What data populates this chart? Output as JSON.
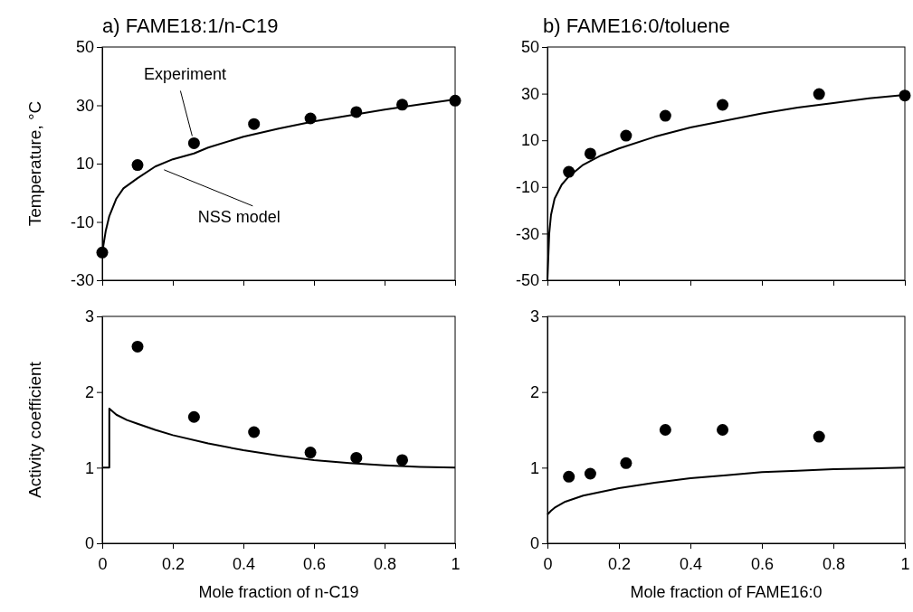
{
  "chart_data": [
    {
      "type": "scatter",
      "title": "a) FAME18:1/n-C19",
      "ylabel": "Temperature, °C",
      "xlim": [
        0,
        1
      ],
      "xticks": [
        0,
        0.2,
        0.4,
        0.6,
        0.8,
        1
      ],
      "ylim": [
        -30,
        50
      ],
      "yticks": [
        -30,
        -10,
        10,
        30,
        50
      ],
      "tick_labels": "y",
      "grid": false,
      "series": [
        {
          "color": "#000000",
          "marker": "circle",
          "x": [
            0,
            0.1,
            0.26,
            0.43,
            0.59,
            0.72,
            0.85,
            1
          ],
          "values": [
            -20.5,
            9.5,
            17,
            23.6,
            25.5,
            27.7,
            30.2,
            31.6
          ]
        },
        {
          "type": "line",
          "color": "#000000",
          "marker": "none",
          "line_style": "solid",
          "x": [
            0,
            0.01,
            0.02,
            0.04,
            0.06,
            0.1,
            0.15,
            0.2,
            0.26,
            0.3,
            0.4,
            0.5,
            0.6,
            0.7,
            0.8,
            0.9,
            1
          ],
          "values": [
            -20.5,
            -13,
            -8,
            -2,
            1.5,
            5,
            9,
            11.5,
            13.5,
            15.5,
            19.2,
            22,
            24.5,
            26.5,
            28.5,
            30.3,
            32
          ]
        }
      ],
      "annotations": [
        {
          "text": "Experiment",
          "x": 0.26,
          "y": 17
        },
        {
          "text": "NSS model",
          "x": 0.17,
          "y": 8.5
        }
      ]
    },
    {
      "type": "scatter",
      "title": "b) FAME16:0/toluene",
      "xlim": [
        0,
        1
      ],
      "xticks": [
        0,
        0.2,
        0.4,
        0.6,
        0.8,
        1
      ],
      "ylim": [
        -50,
        50
      ],
      "yticks": [
        -50,
        -30,
        -10,
        10,
        30,
        50
      ],
      "tick_labels": "y",
      "grid": false,
      "series": [
        {
          "color": "#000000",
          "marker": "circle",
          "x": [
            0.06,
            0.12,
            0.22,
            0.33,
            0.49,
            0.76,
            1
          ],
          "values": [
            -3.5,
            4.3,
            12,
            20.5,
            25.2,
            29.8,
            29.2
          ]
        },
        {
          "type": "line",
          "color": "#000000",
          "marker": "none",
          "line_style": "solid",
          "x": [
            0,
            0.005,
            0.01,
            0.02,
            0.04,
            0.06,
            0.1,
            0.15,
            0.2,
            0.3,
            0.4,
            0.5,
            0.6,
            0.7,
            0.8,
            0.9,
            1
          ],
          "values": [
            -50,
            -30,
            -22,
            -15,
            -9,
            -5.5,
            -0.5,
            3.5,
            6.5,
            11.5,
            15.5,
            18.5,
            21.5,
            24,
            26,
            28,
            29.5
          ]
        }
      ]
    },
    {
      "type": "scatter",
      "xlabel": "Mole fraction of n-C19",
      "ylabel": "Activity coefficient",
      "xlim": [
        0,
        1
      ],
      "xticks": [
        0,
        0.2,
        0.4,
        0.6,
        0.8,
        1
      ],
      "ylim": [
        0,
        3
      ],
      "yticks": [
        0,
        1,
        2,
        3
      ],
      "grid": false,
      "series": [
        {
          "color": "#000000",
          "marker": "circle",
          "x": [
            0.1,
            0.26,
            0.43,
            0.59,
            0.72,
            0.85
          ],
          "values": [
            2.6,
            1.67,
            1.47,
            1.2,
            1.13,
            1.1
          ]
        },
        {
          "type": "line",
          "color": "#000000",
          "marker": "none",
          "line_style": "solid",
          "x": [
            0,
            0.02,
            0.02,
            0.04,
            0.07,
            0.1,
            0.15,
            0.2,
            0.3,
            0.4,
            0.5,
            0.6,
            0.7,
            0.8,
            0.9,
            1
          ],
          "values": [
            1,
            1,
            1.78,
            1.7,
            1.63,
            1.58,
            1.5,
            1.43,
            1.32,
            1.23,
            1.16,
            1.1,
            1.06,
            1.03,
            1.01,
            1
          ]
        }
      ]
    },
    {
      "type": "scatter",
      "xlabel": "Mole fraction of FAME16:0",
      "xlim": [
        0,
        1
      ],
      "xticks": [
        0,
        0.2,
        0.4,
        0.6,
        0.8,
        1
      ],
      "ylim": [
        0,
        3
      ],
      "yticks": [
        0,
        1,
        2,
        3
      ],
      "grid": false,
      "series": [
        {
          "color": "#000000",
          "marker": "circle",
          "x": [
            0.06,
            0.12,
            0.22,
            0.33,
            0.49,
            0.76
          ],
          "values": [
            0.88,
            0.92,
            1.06,
            1.5,
            1.5,
            1.41
          ]
        },
        {
          "type": "line",
          "color": "#000000",
          "marker": "none",
          "line_style": "solid",
          "x": [
            0,
            0.01,
            0.02,
            0.05,
            0.1,
            0.2,
            0.3,
            0.4,
            0.5,
            0.6,
            0.7,
            0.8,
            0.9,
            1
          ],
          "values": [
            0.38,
            0.43,
            0.47,
            0.55,
            0.63,
            0.73,
            0.8,
            0.86,
            0.9,
            0.94,
            0.96,
            0.98,
            0.99,
            1
          ]
        }
      ]
    }
  ]
}
